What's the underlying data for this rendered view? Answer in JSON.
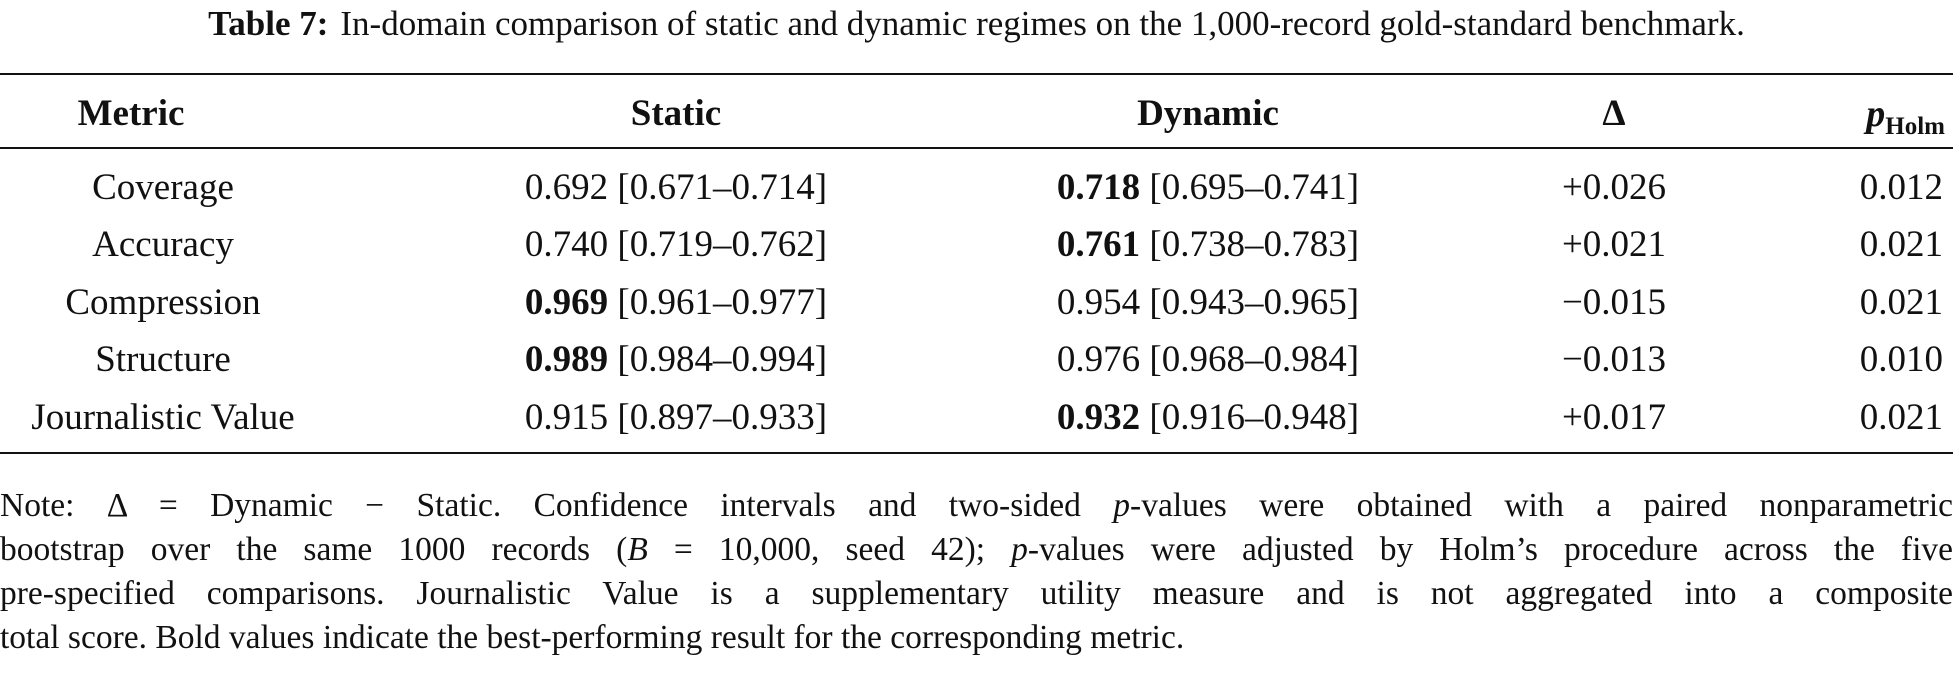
{
  "caption": {
    "label": "Table 7:",
    "text": "In-domain comparison of static and dynamic regimes on the 1,000-record gold-standard benchmark."
  },
  "table": {
    "headers": {
      "metric": "Metric",
      "static": "Static",
      "dynamic": "Dynamic",
      "delta": "Δ",
      "p_symbol": "p",
      "p_subscript": "Holm"
    },
    "rows": [
      {
        "metric": "Coverage",
        "static_value": "0.692",
        "static_ci": "[0.671–0.714]",
        "static_bold": false,
        "dynamic_value": "0.718",
        "dynamic_ci": "[0.695–0.741]",
        "dynamic_bold": true,
        "delta": "+0.026",
        "p_holm": "0.012"
      },
      {
        "metric": "Accuracy",
        "static_value": "0.740",
        "static_ci": "[0.719–0.762]",
        "static_bold": false,
        "dynamic_value": "0.761",
        "dynamic_ci": "[0.738–0.783]",
        "dynamic_bold": true,
        "delta": "+0.021",
        "p_holm": "0.021"
      },
      {
        "metric": "Compression",
        "static_value": "0.969",
        "static_ci": "[0.961–0.977]",
        "static_bold": true,
        "dynamic_value": "0.954",
        "dynamic_ci": "[0.943–0.965]",
        "dynamic_bold": false,
        "delta": "−0.015",
        "p_holm": "0.021"
      },
      {
        "metric": "Structure",
        "static_value": "0.989",
        "static_ci": "[0.984–0.994]",
        "static_bold": true,
        "dynamic_value": "0.976",
        "dynamic_ci": "[0.968–0.984]",
        "dynamic_bold": false,
        "delta": "−0.013",
        "p_holm": "0.010"
      },
      {
        "metric": "Journalistic Value",
        "static_value": "0.915",
        "static_ci": "[0.897–0.933]",
        "static_bold": false,
        "dynamic_value": "0.932",
        "dynamic_ci": "[0.916–0.948]",
        "dynamic_bold": true,
        "delta": "+0.017",
        "p_holm": "0.021"
      }
    ]
  },
  "note": {
    "l1_a": "Note: Δ = Dynamic − Static. Confidence intervals and two-sided ",
    "l1_p": "p",
    "l1_b": "-values were obtained with a paired nonparametric",
    "l2_a": "bootstrap over the same 1000 records (",
    "l2_B": "B",
    "l2_b": " = 10,000, seed 42); ",
    "l2_p": "p",
    "l2_c": "-values were adjusted by Holm’s procedure across the five",
    "l3": "pre-specified comparisons. Journalistic Value is a supplementary utility measure and is not aggregated into a composite",
    "l4": "total score. Bold values indicate the best-performing result for the corresponding metric."
  }
}
